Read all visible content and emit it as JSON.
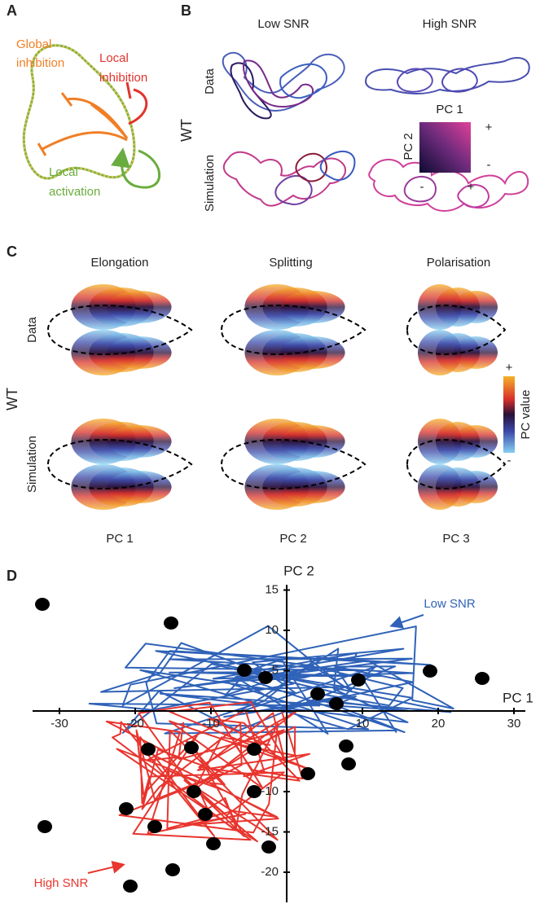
{
  "panel_a": {
    "label": "A",
    "global_inhibition": [
      "Global",
      "inhibition"
    ],
    "local_inhibition": [
      "Local",
      "inhibition"
    ],
    "local_activation": [
      "Local",
      "activation"
    ]
  },
  "panel_b": {
    "label": "B",
    "columns": [
      "Low SNR",
      "High SNR"
    ],
    "rows": [
      "Data",
      "Simulation"
    ],
    "group": "WT",
    "inset": {
      "x_label": "PC 1",
      "y_label": "PC 2",
      "y_plus": "+",
      "y_minus": "-",
      "x_minus": "-",
      "x_plus": "+"
    }
  },
  "panel_c": {
    "label": "C",
    "columns": [
      "Elongation",
      "Splitting",
      "Polarisation"
    ],
    "rows": [
      "Data",
      "Simulation"
    ],
    "group": "WT",
    "components": [
      "PC 1",
      "PC 2",
      "PC 3"
    ],
    "colorbar": {
      "label": "PC value",
      "max": "+",
      "min": "-"
    }
  },
  "panel_d": {
    "label": "D",
    "x_label": "PC 1",
    "y_label": "PC 2",
    "xticks": [
      -30,
      -20,
      -10,
      10,
      20,
      30
    ],
    "yticks": [
      15,
      10,
      5,
      -10,
      -15,
      -20
    ],
    "low_snr": "Low SNR",
    "high_snr": "High SNR"
  }
}
